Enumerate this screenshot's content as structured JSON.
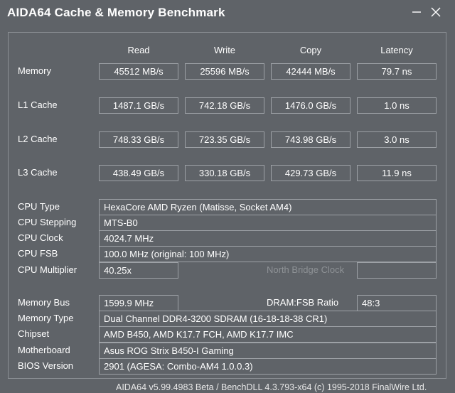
{
  "window": {
    "title": "AIDA64 Cache & Memory Benchmark",
    "minimize_icon": "minimize-icon",
    "close_icon": "close-icon"
  },
  "columns": {
    "read": "Read",
    "write": "Write",
    "copy": "Copy",
    "latency": "Latency"
  },
  "rows": {
    "memory": {
      "label": "Memory",
      "read": "45512 MB/s",
      "write": "25596 MB/s",
      "copy": "42444 MB/s",
      "latency": "79.7 ns"
    },
    "l1": {
      "label": "L1 Cache",
      "read": "1487.1 GB/s",
      "write": "742.18 GB/s",
      "copy": "1476.0 GB/s",
      "latency": "1.0 ns"
    },
    "l2": {
      "label": "L2 Cache",
      "read": "748.33 GB/s",
      "write": "723.35 GB/s",
      "copy": "743.98 GB/s",
      "latency": "3.0 ns"
    },
    "l3": {
      "label": "L3 Cache",
      "read": "438.49 GB/s",
      "write": "330.18 GB/s",
      "copy": "429.73 GB/s",
      "latency": "11.9 ns"
    }
  },
  "cpu": {
    "type_label": "CPU Type",
    "type_value": "HexaCore AMD Ryzen  (Matisse, Socket AM4)",
    "stepping_label": "CPU Stepping",
    "stepping_value": "MTS-B0",
    "clock_label": "CPU Clock",
    "clock_value": "4024.7 MHz",
    "fsb_label": "CPU FSB",
    "fsb_value": "100.0 MHz  (original: 100 MHz)",
    "multiplier_label": "CPU Multiplier",
    "multiplier_value": "40.25x",
    "nb_clock_label": "North Bridge Clock",
    "nb_clock_value": ""
  },
  "memory_info": {
    "bus_label": "Memory Bus",
    "bus_value": "1599.9 MHz",
    "ratio_label": "DRAM:FSB Ratio",
    "ratio_value": "48:3",
    "type_label": "Memory Type",
    "type_value": "Dual Channel DDR4-3200 SDRAM  (16-18-18-38 CR1)",
    "chipset_label": "Chipset",
    "chipset_value": "AMD B450, AMD K17.7 FCH, AMD K17.7 IMC",
    "motherboard_label": "Motherboard",
    "motherboard_value": "Asus ROG Strix B450-I Gaming",
    "bios_label": "BIOS Version",
    "bios_value": "2901  (AGESA: Combo-AM4 1.0.0.3)"
  },
  "footer": "AIDA64 v5.99.4983 Beta / BenchDLL 4.3.793-x64  (c) 1995-2018 FinalWire Ltd.",
  "colors": {
    "background": "#5f6368",
    "border": "#9da1a6",
    "dim_text": "#8e9296"
  }
}
